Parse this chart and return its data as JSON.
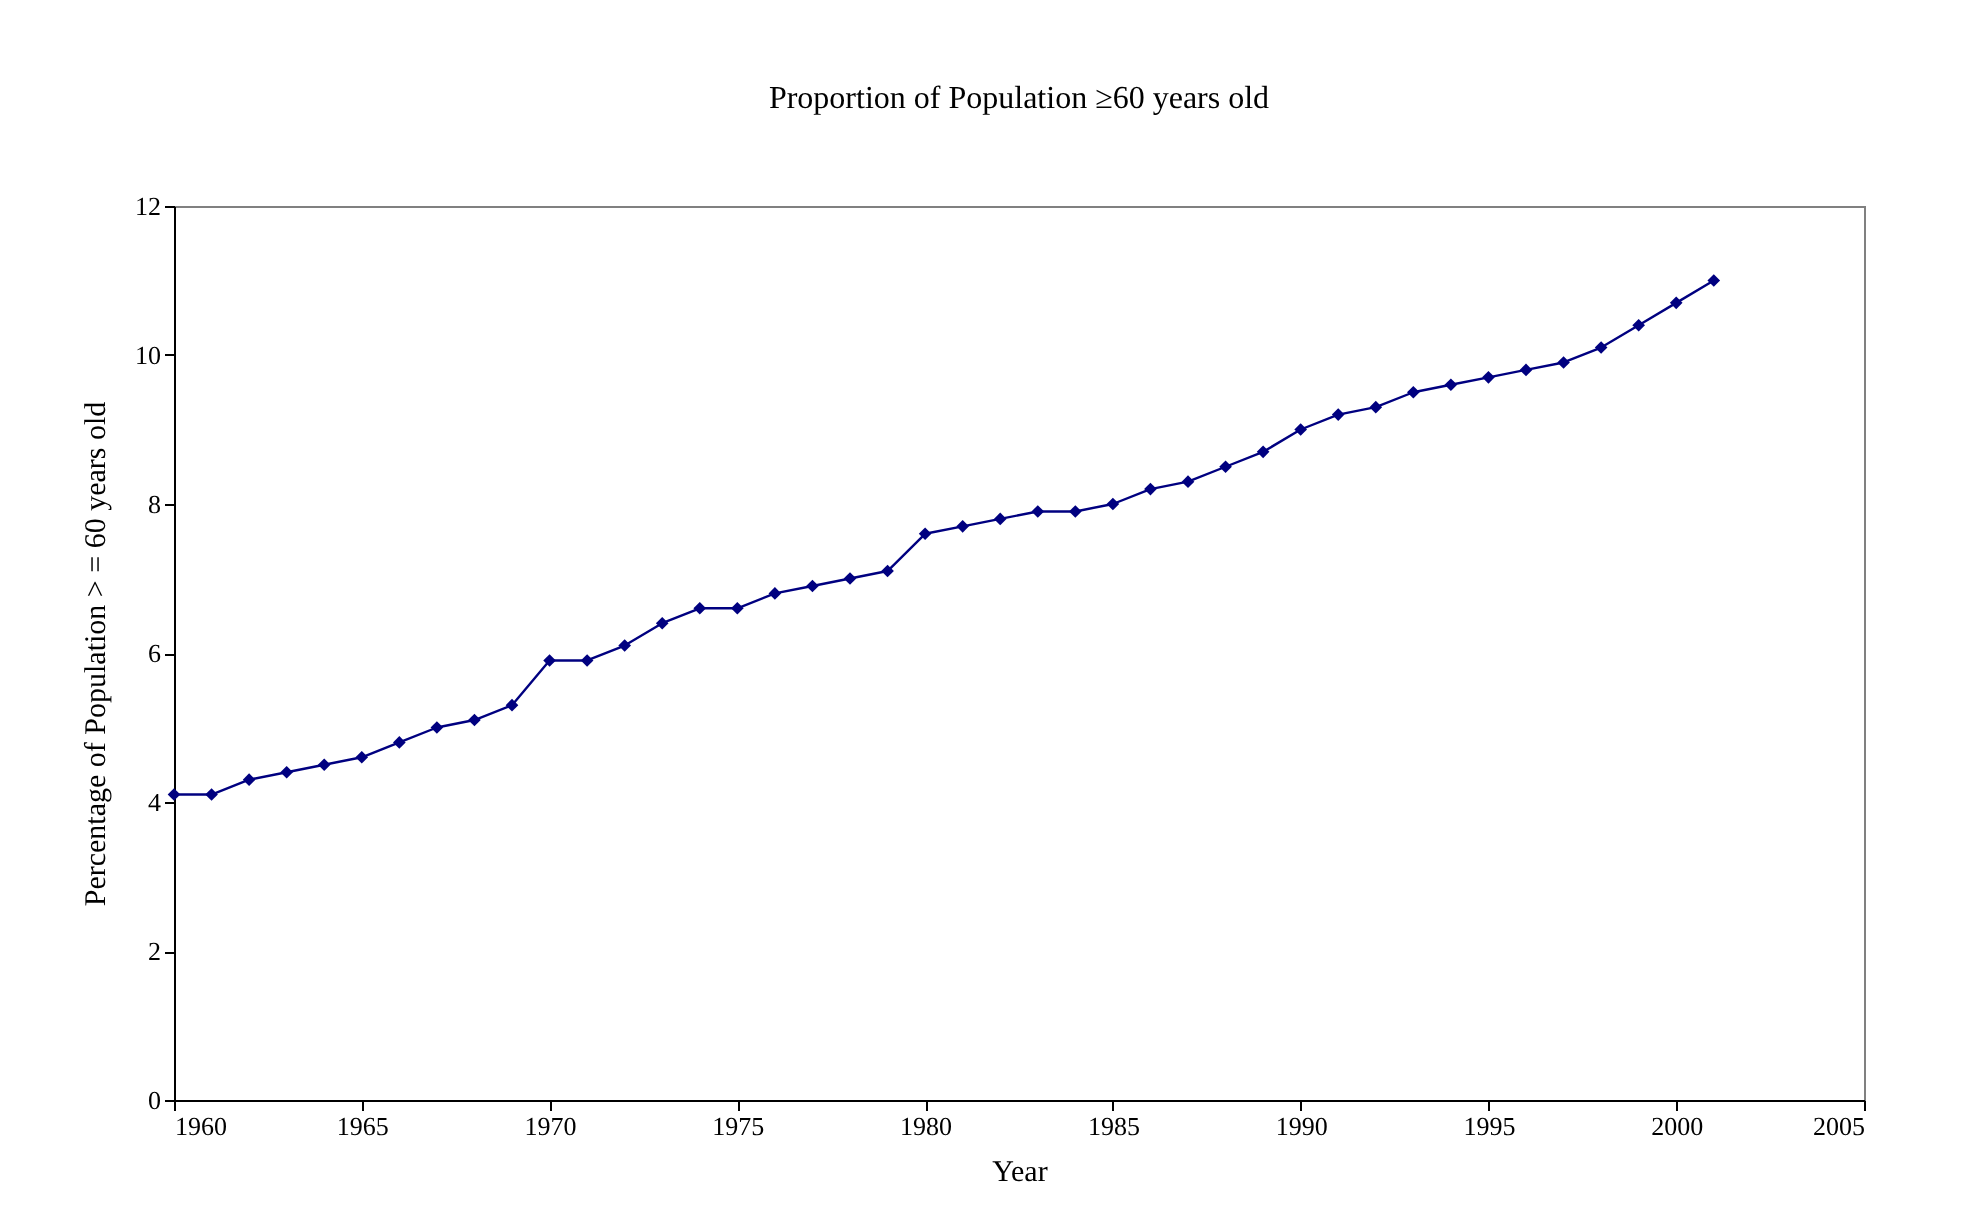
{
  "chart_data": {
    "type": "line",
    "title": "Proportion of Population ≥60 years old",
    "xlabel": "Year",
    "ylabel": "Percentage of Population > = 60 years old",
    "x": [
      1960,
      1961,
      1962,
      1963,
      1964,
      1965,
      1966,
      1967,
      1968,
      1969,
      1970,
      1971,
      1972,
      1973,
      1974,
      1975,
      1976,
      1977,
      1978,
      1979,
      1980,
      1981,
      1982,
      1983,
      1984,
      1985,
      1986,
      1987,
      1988,
      1989,
      1990,
      1991,
      1992,
      1993,
      1994,
      1995,
      1996,
      1997,
      1998,
      1999,
      2000,
      2001
    ],
    "series": [
      {
        "color": "#000080",
        "values": [
          4.1,
          4.1,
          4.3,
          4.4,
          4.5,
          4.6,
          4.8,
          5.0,
          5.1,
          5.3,
          5.9,
          5.9,
          6.1,
          6.4,
          6.6,
          6.6,
          6.8,
          6.9,
          7.0,
          7.1,
          7.6,
          7.7,
          7.8,
          7.9,
          7.9,
          8.0,
          8.2,
          8.3,
          8.5,
          8.7,
          9.0,
          9.2,
          9.3,
          9.5,
          9.6,
          9.7,
          9.8,
          9.9,
          10.1,
          10.4,
          10.7,
          11.0
        ]
      }
    ],
    "xlim": [
      1960,
      2005
    ],
    "xticks": [
      1960,
      1965,
      1970,
      1975,
      1980,
      1985,
      1990,
      1995,
      2000,
      2005
    ],
    "ylim": [
      0,
      12
    ],
    "yticks": [
      0,
      2,
      4,
      6,
      8,
      10,
      12
    ],
    "grid": false,
    "legend": false,
    "marker": "diamond",
    "line_style": "solid"
  }
}
